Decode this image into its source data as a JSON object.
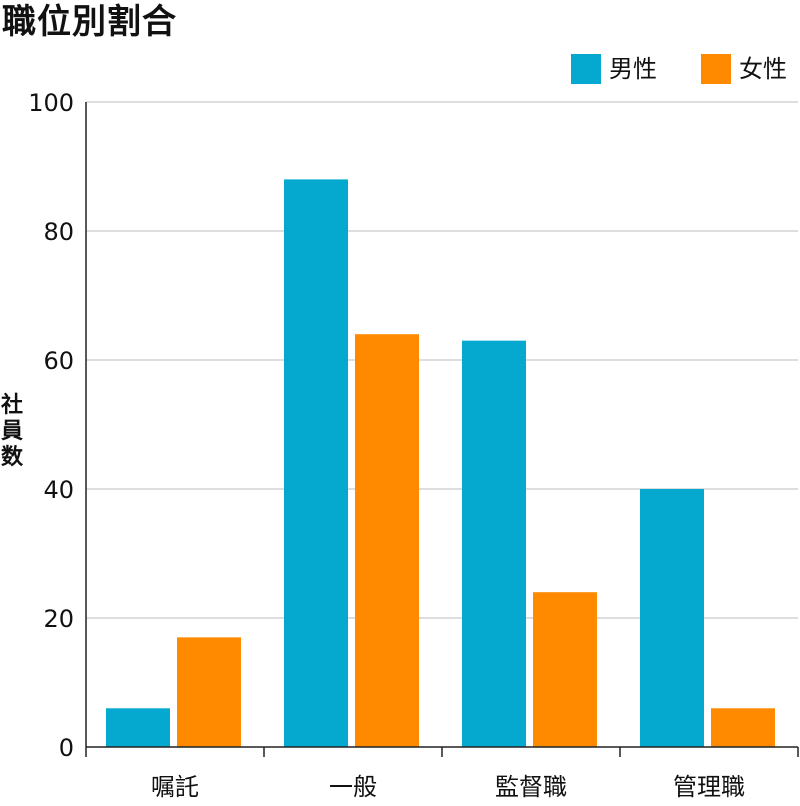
{
  "chart_data": {
    "type": "bar",
    "title": "職位別割合",
    "xlabel": "",
    "ylabel": "社員数",
    "categories": [
      "嘱託",
      "一般",
      "監督職",
      "管理職"
    ],
    "series": [
      {
        "name": "男性",
        "color": "#05a8cf",
        "values": [
          6,
          88,
          63,
          40
        ]
      },
      {
        "name": "女性",
        "color": "#ff8a00",
        "values": [
          17,
          64,
          24,
          6
        ]
      }
    ],
    "ylim": [
      0,
      100
    ],
    "yticks": [
      0,
      20,
      40,
      60,
      80,
      100
    ],
    "grid": true,
    "legend_position": "top-right"
  }
}
